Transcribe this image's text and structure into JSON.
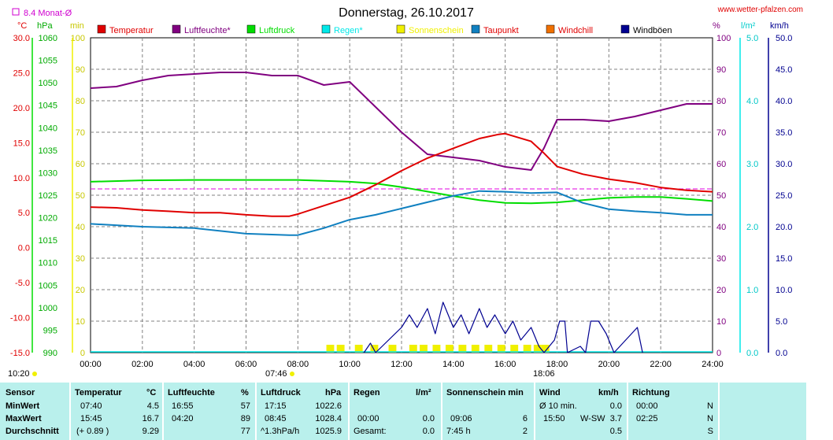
{
  "header": {
    "title": "Donnerstag, 26.10.2017",
    "website": "www.wetter-pfalzen.com",
    "monat_label": "8.4 Monat-Ø",
    "left_units": [
      "°C",
      "hPa",
      "min"
    ],
    "right_units": [
      "%",
      "l/m²",
      "km/h"
    ]
  },
  "legend": [
    {
      "label": "Temperatur",
      "color": "#e00000",
      "text_color": "#e00000"
    },
    {
      "label": "Luftfeuchte*",
      "color": "#800080",
      "text_color": "#800080"
    },
    {
      "label": "Luftdruck",
      "color": "#00dd00",
      "text_color": "#00dd00"
    },
    {
      "label": "Regen*",
      "color": "#00e8e8",
      "text_color": "#00e8e8"
    },
    {
      "label": "Sonnenschein",
      "color": "#f0f000",
      "text_color": "#f0f000"
    },
    {
      "label": "Taupunkt",
      "color": "#1080c0",
      "text_color": "#e00000"
    },
    {
      "label": "Windchill",
      "color": "#f07000",
      "text_color": "#e00000"
    },
    {
      "label": "Windböen",
      "color": "#000090",
      "text_color": "#000000"
    }
  ],
  "colors": {
    "temp": "#e00000",
    "hum": "#800080",
    "press": "#00dd00",
    "dew": "#1080c0",
    "wind": "#000090",
    "sun": "#f0f000",
    "avg": "#e000e0",
    "rain": "#00e8e8",
    "grid": "#808080",
    "stats_bg": "#b9f0ec",
    "monat": "#d000d0"
  },
  "chart_data": {
    "type": "line",
    "x_ticks": [
      "00:00",
      "02:00",
      "04:00",
      "06:00",
      "08:00",
      "10:00",
      "12:00",
      "14:00",
      "16:00",
      "18:00",
      "20:00",
      "22:00",
      "24:00"
    ],
    "axes": {
      "temperature": {
        "unit": "°C",
        "range": [
          -15.0,
          30.0
        ],
        "ticks": [
          "30.0",
          "25.0",
          "20.0",
          "15.0",
          "10.0",
          "5.0",
          "0.0",
          "-5.0",
          "-10.0",
          "-15.0"
        ]
      },
      "pressure": {
        "unit": "hPa",
        "range": [
          990,
          1060
        ],
        "ticks": [
          "1060",
          "1055",
          "1050",
          "1045",
          "1040",
          "1035",
          "1030",
          "1025",
          "1020",
          "1015",
          "1010",
          "1005",
          "1000",
          "995",
          "990"
        ]
      },
      "minutes": {
        "unit": "min",
        "range": [
          0,
          100
        ],
        "ticks": [
          "100",
          "90",
          "80",
          "70",
          "60",
          "50",
          "40",
          "30",
          "20",
          "10",
          "0"
        ]
      },
      "humidity": {
        "unit": "%",
        "range": [
          0,
          100
        ],
        "ticks": [
          "100",
          "90",
          "80",
          "70",
          "60",
          "50",
          "40",
          "30",
          "20",
          "10",
          "0"
        ]
      },
      "rain": {
        "unit": "l/m²",
        "range": [
          0,
          5.0
        ],
        "ticks": [
          "5.0",
          "4.0",
          "3.0",
          "2.0",
          "1.0",
          "0.0"
        ]
      },
      "wind": {
        "unit": "km/h",
        "range": [
          0,
          50.0
        ],
        "ticks": [
          "50.0",
          "45.0",
          "40.0",
          "35.0",
          "30.0",
          "25.0",
          "20.0",
          "15.0",
          "10.0",
          "5.0",
          "0.0"
        ]
      }
    },
    "month_avg_temp": 8.4,
    "series": [
      {
        "name": "Temperatur",
        "unit": "°C",
        "points": [
          [
            0,
            5.8
          ],
          [
            1,
            5.7
          ],
          [
            2,
            5.4
          ],
          [
            3,
            5.2
          ],
          [
            4,
            5.0
          ],
          [
            5,
            5.0
          ],
          [
            6,
            4.7
          ],
          [
            7,
            4.5
          ],
          [
            7.67,
            4.5
          ],
          [
            8,
            4.8
          ],
          [
            9,
            6.0
          ],
          [
            10,
            7.2
          ],
          [
            11,
            9.0
          ],
          [
            12,
            11.0
          ],
          [
            13,
            12.8
          ],
          [
            14,
            14.2
          ],
          [
            15,
            15.6
          ],
          [
            15.75,
            16.2
          ],
          [
            16,
            16.3
          ],
          [
            17,
            15.2
          ],
          [
            17.5,
            13.5
          ],
          [
            18,
            11.6
          ],
          [
            19,
            10.5
          ],
          [
            20,
            9.8
          ],
          [
            21,
            9.3
          ],
          [
            22,
            8.6
          ],
          [
            23,
            8.2
          ],
          [
            24,
            8.0
          ]
        ]
      },
      {
        "name": "Luftfeuchte*",
        "unit": "%",
        "points": [
          [
            0,
            84
          ],
          [
            1,
            84.5
          ],
          [
            2,
            86.5
          ],
          [
            3,
            88
          ],
          [
            4,
            88.5
          ],
          [
            5,
            89
          ],
          [
            6,
            89
          ],
          [
            7,
            88
          ],
          [
            8,
            88
          ],
          [
            9,
            85
          ],
          [
            10,
            86
          ],
          [
            11,
            78
          ],
          [
            12,
            70
          ],
          [
            13,
            63
          ],
          [
            14,
            62
          ],
          [
            15,
            61
          ],
          [
            16,
            59
          ],
          [
            17,
            58
          ],
          [
            17.5,
            65
          ],
          [
            18,
            74
          ],
          [
            19,
            74
          ],
          [
            20,
            73.5
          ],
          [
            21,
            75
          ],
          [
            22,
            77
          ],
          [
            23,
            79
          ],
          [
            24,
            79
          ]
        ]
      },
      {
        "name": "Luftdruck",
        "unit": "hPa",
        "points": [
          [
            0,
            1028.0
          ],
          [
            2,
            1028.3
          ],
          [
            4,
            1028.4
          ],
          [
            6,
            1028.4
          ],
          [
            8,
            1028.4
          ],
          [
            9,
            1028.2
          ],
          [
            10,
            1028.0
          ],
          [
            11,
            1027.6
          ],
          [
            12,
            1026.8
          ],
          [
            13,
            1025.8
          ],
          [
            14,
            1024.8
          ],
          [
            15,
            1023.9
          ],
          [
            16,
            1023.3
          ],
          [
            17,
            1023.2
          ],
          [
            18,
            1023.4
          ],
          [
            19,
            1023.9
          ],
          [
            20,
            1024.4
          ],
          [
            21,
            1024.6
          ],
          [
            22,
            1024.6
          ],
          [
            23,
            1024.2
          ],
          [
            24,
            1023.7
          ]
        ]
      },
      {
        "name": "Taupunkt",
        "unit": "°C",
        "points": [
          [
            0,
            3.4
          ],
          [
            2,
            3.0
          ],
          [
            4,
            2.8
          ],
          [
            6,
            2.0
          ],
          [
            7.67,
            1.8
          ],
          [
            8,
            1.8
          ],
          [
            9,
            2.8
          ],
          [
            10,
            4.0
          ],
          [
            11,
            4.7
          ],
          [
            12,
            5.6
          ],
          [
            13,
            6.5
          ],
          [
            14,
            7.4
          ],
          [
            15,
            8.1
          ],
          [
            16,
            8.0
          ],
          [
            17,
            7.8
          ],
          [
            18,
            7.9
          ],
          [
            19,
            6.4
          ],
          [
            20,
            5.5
          ],
          [
            21,
            5.2
          ],
          [
            22,
            5.0
          ],
          [
            23,
            4.7
          ],
          [
            24,
            4.7
          ]
        ]
      },
      {
        "name": "Windböen",
        "unit": "km/h",
        "points": [
          [
            10.55,
            0
          ],
          [
            10.8,
            1.5
          ],
          [
            11,
            0
          ],
          [
            12,
            4
          ],
          [
            12.3,
            6
          ],
          [
            12.6,
            4
          ],
          [
            13,
            7
          ],
          [
            13.3,
            3
          ],
          [
            13.6,
            8
          ],
          [
            14,
            4
          ],
          [
            14.3,
            6
          ],
          [
            14.6,
            3
          ],
          [
            15,
            7
          ],
          [
            15.3,
            4
          ],
          [
            15.6,
            6
          ],
          [
            16,
            3
          ],
          [
            16.3,
            5
          ],
          [
            16.6,
            2
          ],
          [
            17,
            4
          ],
          [
            17.3,
            1
          ],
          [
            17.5,
            0
          ],
          [
            17.9,
            2
          ],
          [
            18.1,
            5
          ],
          [
            18.3,
            5
          ],
          [
            18.4,
            0
          ],
          [
            18.9,
            1
          ],
          [
            19.1,
            0
          ],
          [
            19.3,
            5
          ],
          [
            19.6,
            5
          ],
          [
            19.9,
            3
          ],
          [
            20.2,
            0
          ],
          [
            21.1,
            4
          ],
          [
            21.3,
            0
          ]
        ]
      }
    ],
    "sunshine_bars": [
      [
        9.1,
        2.5
      ],
      [
        9.5,
        2.5
      ],
      [
        10.2,
        2.5
      ],
      [
        10.8,
        2.5
      ],
      [
        11.5,
        2.5
      ],
      [
        12.3,
        2.5
      ],
      [
        12.7,
        2.5
      ],
      [
        13.2,
        2.5
      ],
      [
        13.7,
        2.5
      ],
      [
        14.2,
        2.5
      ],
      [
        14.7,
        2.5
      ],
      [
        15.2,
        2.5
      ],
      [
        15.7,
        2.5
      ],
      [
        16.2,
        2.5
      ],
      [
        16.7,
        2.5
      ],
      [
        17.1,
        2.5
      ],
      [
        17.4,
        2.5
      ]
    ],
    "sunrise_label": "07:46",
    "sunset_label": "18:06",
    "time_label": "10:20"
  },
  "stats": {
    "row_labels": [
      "Sensor",
      "MinWert",
      "MaxWert",
      "Durchschnitt"
    ],
    "temperatur": {
      "head": "Temperatur",
      "unit": "°C",
      "min_time": "07:40",
      "min": "4.5",
      "max_time": "15:45",
      "max": "16.7",
      "avg_note": "(+ 0.89 )",
      "avg": "9.29"
    },
    "luftfeuchte": {
      "head": "Luftfeuchte",
      "unit": "%",
      "min_time": "16:55",
      "min": "57",
      "max_time": "04:20",
      "max": "89",
      "avg": "77"
    },
    "luftdruck": {
      "head": "Luftdruck",
      "unit": "hPa",
      "min_time": "17:15",
      "min": "1022.6",
      "max_time": "08:45",
      "max": "1028.4",
      "avg_note": "^1.3hPa/h",
      "avg": "1025.9"
    },
    "regen": {
      "head": "Regen",
      "unit": "l/m²",
      "max_time": "00:00",
      "max": "0.0",
      "avg_note": "Gesamt:",
      "avg": "0.0"
    },
    "sonne": {
      "head": "Sonnenschein min",
      "min_time": "",
      "max_time": "09:06",
      "max": "6",
      "avg_note": "7:45 h",
      "avg": "2"
    },
    "wind": {
      "head": "Wind",
      "unit": "km/h",
      "min_time": "Ø 10 min.",
      "min": "0.0",
      "max_time": "15:50",
      "max_dir": "W-SW",
      "max": "3.7",
      "avg": "0.5"
    },
    "richtung": {
      "head": "Richtung",
      "min_time": "00:00",
      "min": "N",
      "max_time": "02:25",
      "max": "N",
      "avg": "S"
    }
  }
}
